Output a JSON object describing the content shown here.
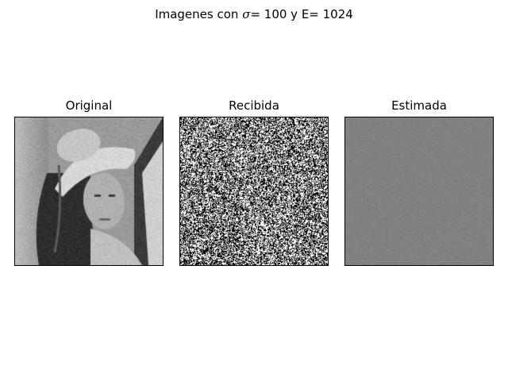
{
  "figure": {
    "suptitle": {
      "prefix": "Imagenes con ",
      "symbol": "σ",
      "suffix": "= 100 y E= 1024"
    },
    "panels": [
      {
        "title": "Original",
        "image": "grayscale-portrait-woman-with-hat"
      },
      {
        "title": "Recibida",
        "image": "black-white-salt-pepper-noise"
      },
      {
        "title": "Estimada",
        "image": "uniform-gray-low-contrast-texture"
      }
    ]
  },
  "colors": {
    "background": "#ffffff",
    "frame": "#000000",
    "estimated_gray": "#808080"
  }
}
